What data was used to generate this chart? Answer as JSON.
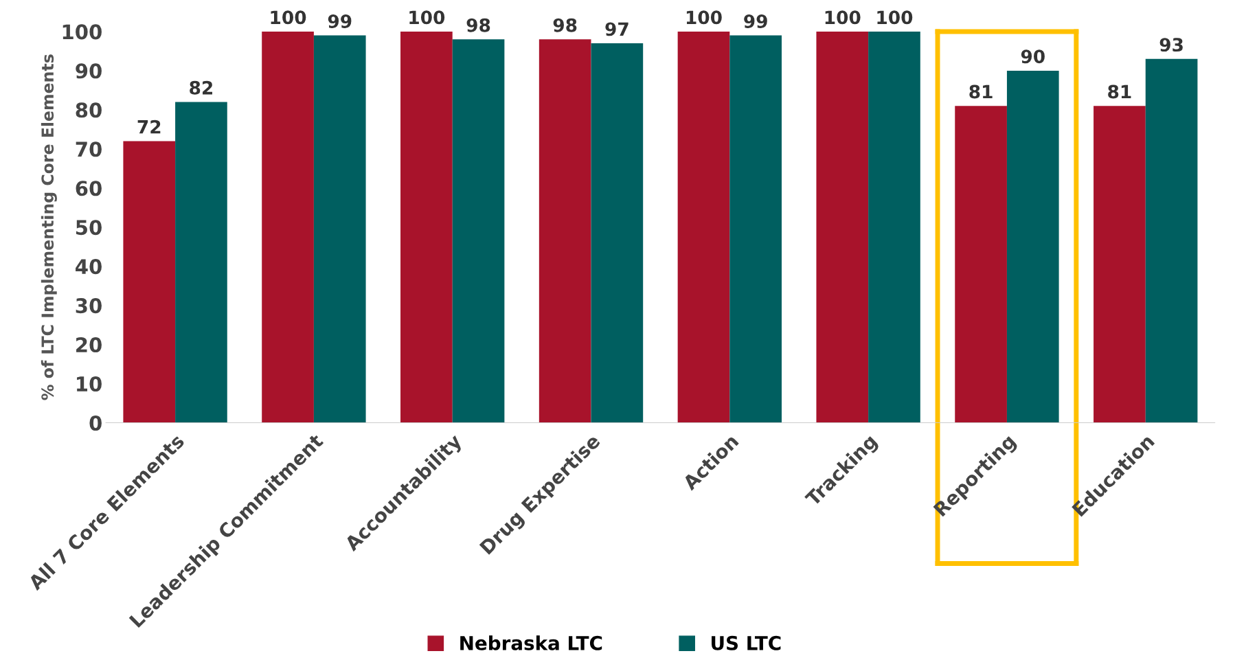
{
  "chart_data": {
    "type": "bar",
    "ylabel": "% of LTC Implementing Core Elements",
    "categories": [
      "All 7 Core Elements",
      "Leadership Commitment",
      "Accountability",
      "Drug Expertise",
      "Action",
      "Tracking",
      "Reporting",
      "Education"
    ],
    "series": [
      {
        "name": "Nebraska LTC",
        "color": "#a8132b",
        "values": [
          72,
          100,
          100,
          98,
          100,
          100,
          81,
          81
        ]
      },
      {
        "name": "US LTC",
        "color": "#005f60",
        "values": [
          82,
          99,
          98,
          97,
          99,
          100,
          90,
          93
        ]
      }
    ],
    "ylim": [
      0,
      100
    ],
    "yticks": [
      0,
      10,
      20,
      30,
      40,
      50,
      60,
      70,
      80,
      90,
      100
    ],
    "data_labels": true,
    "legend": "bottom",
    "grid": false
  }
}
